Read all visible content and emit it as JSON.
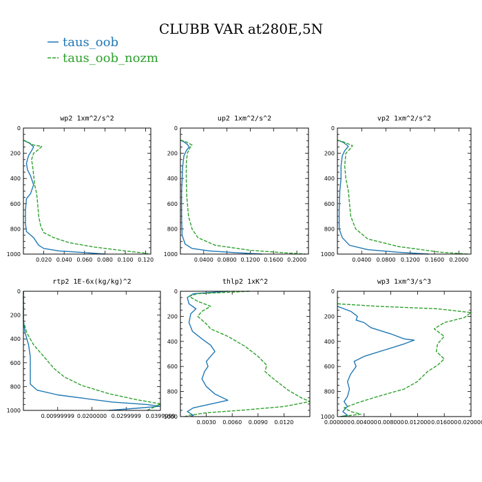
{
  "title": "CLUBB VAR at280E,5N",
  "colors": {
    "taus_oob": "#1f77b4",
    "taus_oob_nozm": "#2ca02c"
  },
  "legend": [
    {
      "name": "taus_oob",
      "color": "#1f77b4",
      "dash": "solid"
    },
    {
      "name": "taus_oob_nozm",
      "color": "#2ca02c",
      "dash": "dashed"
    }
  ],
  "chart_data": [
    {
      "type": "line",
      "title": "wp2 1xm^2/s^2",
      "xlim": [
        0,
        0.125
      ],
      "ylim": [
        1000,
        0
      ],
      "xticks": [
        0.02,
        0.04,
        0.06,
        0.08,
        0.1,
        0.12
      ],
      "xtick_labels": [
        "0.020",
        "0.040",
        "0.060",
        "0.080",
        "0.100",
        "0.120"
      ],
      "yticks": [
        0,
        200,
        400,
        600,
        800,
        1000
      ],
      "series": [
        {
          "name": "taus_oob",
          "points": [
            [
              0.0,
              95
            ],
            [
              0.002,
              105
            ],
            [
              0.006,
              120
            ],
            [
              0.01,
              150
            ],
            [
              0.008,
              180
            ],
            [
              0.005,
              220
            ],
            [
              0.003,
              280
            ],
            [
              0.004,
              330
            ],
            [
              0.007,
              380
            ],
            [
              0.01,
              450
            ],
            [
              0.007,
              520
            ],
            [
              0.003,
              560
            ],
            [
              0.002,
              650
            ],
            [
              0.002,
              760
            ],
            [
              0.003,
              820
            ],
            [
              0.01,
              870
            ],
            [
              0.015,
              930
            ],
            [
              0.02,
              955
            ],
            [
              0.035,
              975
            ],
            [
              0.06,
              988
            ],
            [
              0.08,
              1000
            ]
          ]
        },
        {
          "name": "taus_oob_nozm",
          "points": [
            [
              0.0,
              95
            ],
            [
              0.004,
              110
            ],
            [
              0.01,
              135
            ],
            [
              0.018,
              145
            ],
            [
              0.015,
              170
            ],
            [
              0.01,
              200
            ],
            [
              0.008,
              250
            ],
            [
              0.009,
              300
            ],
            [
              0.01,
              370
            ],
            [
              0.011,
              450
            ],
            [
              0.013,
              520
            ],
            [
              0.014,
              600
            ],
            [
              0.015,
              700
            ],
            [
              0.017,
              780
            ],
            [
              0.02,
              830
            ],
            [
              0.03,
              870
            ],
            [
              0.045,
              910
            ],
            [
              0.07,
              945
            ],
            [
              0.1,
              975
            ],
            [
              0.122,
              995
            ]
          ]
        }
      ]
    },
    {
      "type": "line",
      "title": "up2 1xm^2/s^2",
      "xlim": [
        0,
        0.22
      ],
      "ylim": [
        1000,
        0
      ],
      "xticks": [
        0.04,
        0.08,
        0.12,
        0.16,
        0.2
      ],
      "xtick_labels": [
        "0.0400",
        "0.0800",
        "0.1200",
        "0.1600",
        "0.2000"
      ],
      "yticks": [
        0,
        200,
        400,
        600,
        800,
        1000
      ],
      "series": [
        {
          "name": "taus_oob",
          "points": [
            [
              0.0,
              95
            ],
            [
              0.006,
              110
            ],
            [
              0.012,
              130
            ],
            [
              0.015,
              150
            ],
            [
              0.01,
              180
            ],
            [
              0.006,
              220
            ],
            [
              0.004,
              300
            ],
            [
              0.002,
              500
            ],
            [
              0.002,
              700
            ],
            [
              0.003,
              850
            ],
            [
              0.008,
              920
            ],
            [
              0.02,
              955
            ],
            [
              0.05,
              975
            ],
            [
              0.1,
              990
            ],
            [
              0.14,
              1000
            ]
          ]
        },
        {
          "name": "taus_oob_nozm",
          "points": [
            [
              0.0,
              95
            ],
            [
              0.01,
              110
            ],
            [
              0.02,
              135
            ],
            [
              0.016,
              160
            ],
            [
              0.012,
              200
            ],
            [
              0.01,
              280
            ],
            [
              0.01,
              400
            ],
            [
              0.011,
              550
            ],
            [
              0.014,
              700
            ],
            [
              0.02,
              800
            ],
            [
              0.03,
              870
            ],
            [
              0.06,
              930
            ],
            [
              0.12,
              970
            ],
            [
              0.18,
              990
            ],
            [
              0.215,
              1000
            ]
          ]
        }
      ]
    },
    {
      "type": "line",
      "title": "vp2 1xm^2/s^2",
      "xlim": [
        0,
        0.22
      ],
      "ylim": [
        1000,
        0
      ],
      "xticks": [
        0.04,
        0.08,
        0.12,
        0.16,
        0.2
      ],
      "xtick_labels": [
        "0.0400",
        "0.0800",
        "0.1200",
        "0.1600",
        "0.2000"
      ],
      "yticks": [
        0,
        200,
        400,
        600,
        800,
        1000
      ],
      "series": [
        {
          "name": "taus_oob",
          "points": [
            [
              0.0,
              95
            ],
            [
              0.01,
              115
            ],
            [
              0.018,
              145
            ],
            [
              0.012,
              180
            ],
            [
              0.008,
              220
            ],
            [
              0.006,
              300
            ],
            [
              0.006,
              400
            ],
            [
              0.004,
              500
            ],
            [
              0.003,
              650
            ],
            [
              0.003,
              800
            ],
            [
              0.008,
              870
            ],
            [
              0.02,
              930
            ],
            [
              0.05,
              965
            ],
            [
              0.1,
              985
            ],
            [
              0.15,
              1000
            ]
          ]
        },
        {
          "name": "taus_oob_nozm",
          "points": [
            [
              0.0,
              95
            ],
            [
              0.01,
              110
            ],
            [
              0.025,
              140
            ],
            [
              0.02,
              170
            ],
            [
              0.014,
              200
            ],
            [
              0.012,
              300
            ],
            [
              0.014,
              400
            ],
            [
              0.018,
              500
            ],
            [
              0.02,
              600
            ],
            [
              0.022,
              700
            ],
            [
              0.03,
              800
            ],
            [
              0.05,
              880
            ],
            [
              0.1,
              940
            ],
            [
              0.17,
              985
            ],
            [
              0.215,
              1000
            ]
          ]
        }
      ]
    },
    {
      "type": "line",
      "title": "rtp2 1E-6x(kg/kg)^2",
      "xlim": [
        0,
        0.04
      ],
      "ylim": [
        1000,
        0
      ],
      "xticks": [
        0.01,
        0.02,
        0.03,
        0.04
      ],
      "xtick_labels": [
        "0.00999999",
        "0.0200000",
        "0.0299999",
        "0.0399999"
      ],
      "yticks": [
        0,
        200,
        400,
        600,
        800,
        1000
      ],
      "series": [
        {
          "name": "taus_oob",
          "points": [
            [
              0.0,
              0
            ],
            [
              0.0,
              250
            ],
            [
              0.0005,
              350
            ],
            [
              0.0015,
              450
            ],
            [
              0.002,
              550
            ],
            [
              0.002,
              700
            ],
            [
              0.002,
              780
            ],
            [
              0.004,
              830
            ],
            [
              0.01,
              870
            ],
            [
              0.018,
              900
            ],
            [
              0.026,
              930
            ],
            [
              0.036,
              950
            ],
            [
              0.04,
              965
            ],
            [
              0.034,
              980
            ],
            [
              0.025,
              1000
            ]
          ]
        },
        {
          "name": "taus_oob_nozm",
          "points": [
            [
              0.0,
              0
            ],
            [
              0.0,
              250
            ],
            [
              0.001,
              350
            ],
            [
              0.003,
              450
            ],
            [
              0.006,
              550
            ],
            [
              0.009,
              650
            ],
            [
              0.012,
              720
            ],
            [
              0.017,
              790
            ],
            [
              0.025,
              860
            ],
            [
              0.033,
              910
            ],
            [
              0.04,
              945
            ],
            [
              0.038,
              975
            ],
            [
              0.036,
              1000
            ]
          ]
        }
      ]
    },
    {
      "type": "line",
      "title": "thlp2 1xK^2",
      "xlim": [
        0,
        0.015
      ],
      "ylim": [
        1000,
        0
      ],
      "xticks": [
        0.003,
        0.006,
        0.009,
        0.012
      ],
      "xtick_labels": [
        "0.0030",
        "0.0060",
        "0.0090",
        "0.0120"
      ],
      "yticks": [
        0,
        200,
        400,
        600,
        800,
        1000
      ],
      "series": [
        {
          "name": "taus_oob",
          "points": [
            [
              0.0055,
              0
            ],
            [
              0.0015,
              20
            ],
            [
              0.0008,
              50
            ],
            [
              0.001,
              100
            ],
            [
              0.0018,
              140
            ],
            [
              0.0012,
              180
            ],
            [
              0.001,
              250
            ],
            [
              0.0014,
              320
            ],
            [
              0.0025,
              380
            ],
            [
              0.0035,
              430
            ],
            [
              0.004,
              480
            ],
            [
              0.0035,
              520
            ],
            [
              0.003,
              560
            ],
            [
              0.0032,
              600
            ],
            [
              0.0028,
              640
            ],
            [
              0.0025,
              700
            ],
            [
              0.003,
              760
            ],
            [
              0.004,
              820
            ],
            [
              0.0055,
              870
            ],
            [
              0.0035,
              900
            ],
            [
              0.0015,
              930
            ],
            [
              0.0008,
              960
            ],
            [
              0.0015,
              990
            ],
            [
              0.0012,
              1000
            ]
          ]
        },
        {
          "name": "taus_oob_nozm",
          "points": [
            [
              0.008,
              0
            ],
            [
              0.002,
              20
            ],
            [
              0.001,
              40
            ],
            [
              0.002,
              80
            ],
            [
              0.0035,
              120
            ],
            [
              0.0025,
              160
            ],
            [
              0.002,
              200
            ],
            [
              0.003,
              260
            ],
            [
              0.0035,
              300
            ],
            [
              0.0055,
              360
            ],
            [
              0.0075,
              440
            ],
            [
              0.009,
              520
            ],
            [
              0.01,
              590
            ],
            [
              0.0098,
              640
            ],
            [
              0.0108,
              700
            ],
            [
              0.0125,
              790
            ],
            [
              0.014,
              850
            ],
            [
              0.015,
              880
            ],
            [
              0.012,
              920
            ],
            [
              0.007,
              950
            ],
            [
              0.003,
              970
            ],
            [
              0.001,
              990
            ],
            [
              0.0005,
              1000
            ]
          ]
        }
      ]
    },
    {
      "type": "line",
      "title": "wp3 1xm^3/s^3",
      "xlim": [
        0,
        0.02
      ],
      "ylim": [
        1000,
        0
      ],
      "xticks": [
        0.0,
        0.004,
        0.008,
        0.012,
        0.016,
        0.02
      ],
      "xtick_labels": [
        "0.000000",
        "0.004000",
        "0.008000",
        "0.012000",
        "0.016000",
        "0.020000"
      ],
      "yticks": [
        0,
        200,
        400,
        600,
        800,
        1000
      ],
      "series": [
        {
          "name": "taus_oob",
          "points": [
            [
              0.0,
              120
            ],
            [
              0.001,
              140
            ],
            [
              0.002,
              160
            ],
            [
              0.003,
              200
            ],
            [
              0.0028,
              230
            ],
            [
              0.004,
              250
            ],
            [
              0.005,
              290
            ],
            [
              0.008,
              340
            ],
            [
              0.01,
              380
            ],
            [
              0.0115,
              390
            ],
            [
              0.01,
              420
            ],
            [
              0.007,
              470
            ],
            [
              0.004,
              520
            ],
            [
              0.0025,
              560
            ],
            [
              0.0028,
              600
            ],
            [
              0.002,
              660
            ],
            [
              0.0015,
              720
            ],
            [
              0.0018,
              780
            ],
            [
              0.0015,
              840
            ],
            [
              0.001,
              880
            ],
            [
              0.0015,
              920
            ],
            [
              0.0008,
              960
            ],
            [
              0.0015,
              990
            ],
            [
              0.0005,
              1000
            ]
          ]
        },
        {
          "name": "taus_oob_nozm",
          "points": [
            [
              0.0,
              100
            ],
            [
              0.006,
              120
            ],
            [
              0.015,
              140
            ],
            [
              0.02,
              170
            ],
            [
              0.019,
              210
            ],
            [
              0.016,
              250
            ],
            [
              0.0145,
              300
            ],
            [
              0.016,
              360
            ],
            [
              0.015,
              420
            ],
            [
              0.0148,
              480
            ],
            [
              0.016,
              540
            ],
            [
              0.015,
              590
            ],
            [
              0.0135,
              640
            ],
            [
              0.012,
              720
            ],
            [
              0.01,
              780
            ],
            [
              0.006,
              840
            ],
            [
              0.003,
              890
            ],
            [
              0.001,
              930
            ],
            [
              0.002,
              960
            ],
            [
              0.0035,
              980
            ],
            [
              0.0005,
              1000
            ]
          ]
        }
      ]
    }
  ]
}
